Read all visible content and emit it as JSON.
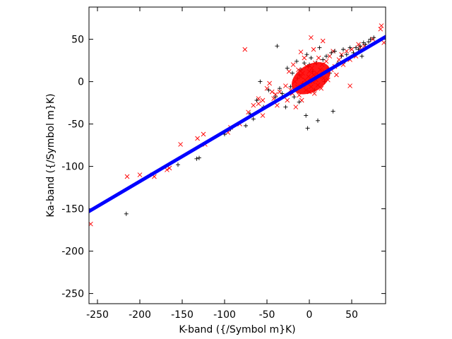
{
  "chart_data": {
    "type": "scatter",
    "xlabel": "K-band ({/Symbol m}K)",
    "ylabel": "Ka-band ({/Symbol m}K)",
    "xlim": [
      -260,
      90
    ],
    "ylim": [
      -262,
      88
    ],
    "x_ticks": [
      -250,
      -200,
      -150,
      -100,
      -50,
      0,
      50
    ],
    "y_ticks": [
      50,
      0,
      -50,
      -100,
      -150,
      -200,
      -250
    ],
    "grid": false,
    "legend": "none",
    "colors": {
      "red_series": "#ff0000",
      "black_series": "#000000",
      "fit_line": "#0000ff"
    },
    "series": [
      {
        "marker": "x",
        "color": "#ff0000",
        "points": [
          [
            -258,
            -168
          ],
          [
            -215,
            -112
          ],
          [
            -200,
            -110
          ],
          [
            -185,
            -110
          ],
          [
            -183,
            -112
          ],
          [
            -168,
            -104
          ],
          [
            -165,
            -102
          ],
          [
            -152,
            -74
          ],
          [
            -132,
            -67
          ],
          [
            -125,
            -62
          ],
          [
            -123,
            -74
          ],
          [
            -96,
            -60
          ],
          [
            -93,
            -54
          ],
          [
            -82,
            -50
          ],
          [
            -76,
            38
          ],
          [
            -72,
            -36
          ],
          [
            -66,
            -28
          ],
          [
            -60,
            -26
          ],
          [
            -55,
            -22
          ],
          [
            -55,
            -40
          ],
          [
            -50,
            -8
          ],
          [
            -47,
            -2
          ],
          [
            -44,
            -12
          ],
          [
            -42,
            -20
          ],
          [
            -40,
            -15
          ],
          [
            -38,
            -28
          ],
          [
            -35,
            -12
          ],
          [
            -30,
            -18
          ],
          [
            -28,
            -5
          ],
          [
            -26,
            -22
          ],
          [
            -24,
            12
          ],
          [
            -22,
            -10
          ],
          [
            -20,
            -14
          ],
          [
            -19,
            20
          ],
          [
            -17,
            0
          ],
          [
            -16,
            -30
          ],
          [
            -14,
            -6
          ],
          [
            -13,
            14
          ],
          [
            -12,
            -16
          ],
          [
            -10,
            6
          ],
          [
            -9,
            -22
          ],
          [
            -8,
            10
          ],
          [
            -7,
            -4
          ],
          [
            -6,
            28
          ],
          [
            -5,
            2
          ],
          [
            -4,
            -10
          ],
          [
            -3,
            18
          ],
          [
            -2,
            -2
          ],
          [
            -1,
            6
          ],
          [
            0,
            12
          ],
          [
            0,
            -12
          ],
          [
            1,
            4
          ],
          [
            2,
            52
          ],
          [
            2,
            -6
          ],
          [
            3,
            16
          ],
          [
            4,
            0
          ],
          [
            5,
            8
          ],
          [
            6,
            -14
          ],
          [
            7,
            22
          ],
          [
            8,
            2
          ],
          [
            9,
            10
          ],
          [
            10,
            -4
          ],
          [
            11,
            28
          ],
          [
            12,
            6
          ],
          [
            13,
            14
          ],
          [
            14,
            -8
          ],
          [
            15,
            20
          ],
          [
            16,
            48
          ],
          [
            17,
            4
          ],
          [
            18,
            12
          ],
          [
            20,
            24
          ],
          [
            22,
            2
          ],
          [
            24,
            30
          ],
          [
            26,
            14
          ],
          [
            28,
            36
          ],
          [
            30,
            18
          ],
          [
            32,
            8
          ],
          [
            35,
            26
          ],
          [
            38,
            32
          ],
          [
            40,
            20
          ],
          [
            44,
            36
          ],
          [
            48,
            26
          ],
          [
            50,
            38
          ],
          [
            55,
            30
          ],
          [
            58,
            44
          ],
          [
            48,
            -5
          ],
          [
            60,
            40
          ],
          [
            65,
            42
          ],
          [
            75,
            50
          ],
          [
            85,
            66
          ],
          [
            84,
            62
          ],
          [
            88,
            46
          ],
          [
            -10,
            35
          ],
          [
            5,
            38
          ],
          [
            -60,
            -20
          ]
        ]
      },
      {
        "marker": "+",
        "color": "#000000",
        "points": [
          [
            -216,
            -156
          ],
          [
            -155,
            -98
          ],
          [
            -133,
            -91
          ],
          [
            -130,
            -90
          ],
          [
            -100,
            -62
          ],
          [
            -93,
            -56
          ],
          [
            -75,
            -52
          ],
          [
            -70,
            -38
          ],
          [
            -62,
            -22
          ],
          [
            -58,
            0
          ],
          [
            -48,
            -10
          ],
          [
            -38,
            42
          ],
          [
            -35,
            -8
          ],
          [
            -32,
            -14
          ],
          [
            -28,
            -30
          ],
          [
            -26,
            16
          ],
          [
            -22,
            -6
          ],
          [
            -20,
            10
          ],
          [
            -18,
            -18
          ],
          [
            -15,
            24
          ],
          [
            -14,
            4
          ],
          [
            -12,
            -24
          ],
          [
            -10,
            14
          ],
          [
            -8,
            -2
          ],
          [
            -6,
            22
          ],
          [
            -4,
            -40
          ],
          [
            -3,
            32
          ],
          [
            -2,
            -55
          ],
          [
            -1,
            18
          ],
          [
            2,
            28
          ],
          [
            4,
            12
          ],
          [
            6,
            -10
          ],
          [
            8,
            22
          ],
          [
            10,
            -46
          ],
          [
            12,
            40
          ],
          [
            14,
            8
          ],
          [
            16,
            26
          ],
          [
            18,
            0
          ],
          [
            20,
            30
          ],
          [
            22,
            16
          ],
          [
            26,
            34
          ],
          [
            28,
            -35
          ],
          [
            30,
            36
          ],
          [
            34,
            22
          ],
          [
            38,
            30
          ],
          [
            40,
            38
          ],
          [
            44,
            32
          ],
          [
            48,
            40
          ],
          [
            52,
            34
          ],
          [
            55,
            40
          ],
          [
            58,
            38
          ],
          [
            60,
            42
          ],
          [
            62,
            30
          ],
          [
            64,
            46
          ],
          [
            66,
            44
          ],
          [
            70,
            47
          ],
          [
            72,
            50
          ],
          [
            76,
            52
          ],
          [
            -40,
            -18
          ],
          [
            -54,
            -30
          ],
          [
            -66,
            -44
          ],
          [
            -12,
            8
          ],
          [
            0,
            20
          ],
          [
            24,
            10
          ],
          [
            42,
            24
          ]
        ]
      }
    ],
    "fit_line": {
      "color": "#0000ff",
      "x": [
        -260,
        90
      ],
      "y": [
        -153,
        53
      ]
    }
  }
}
